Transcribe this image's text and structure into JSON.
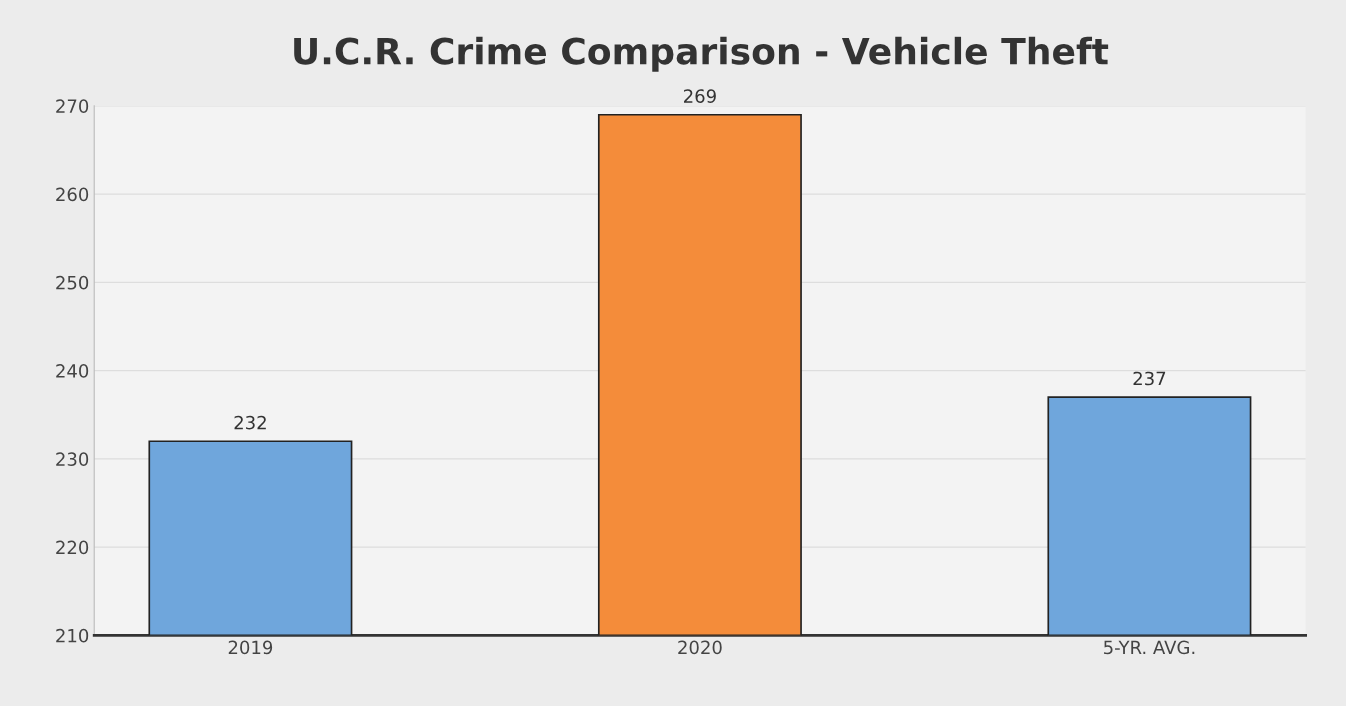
{
  "chart_data": {
    "type": "bar",
    "title": "U.C.R. Crime Comparison - Vehicle Theft",
    "categories": [
      "2019",
      "2020",
      "5-YR. AVG."
    ],
    "values": [
      232,
      269,
      237
    ],
    "colors": [
      "#6fa6dc",
      "#f48c3a",
      "#6fa6dc"
    ],
    "ylim": [
      210,
      270
    ],
    "yticks": [
      210,
      220,
      230,
      240,
      250,
      260,
      270
    ],
    "grid": "y",
    "data_labels": true
  }
}
